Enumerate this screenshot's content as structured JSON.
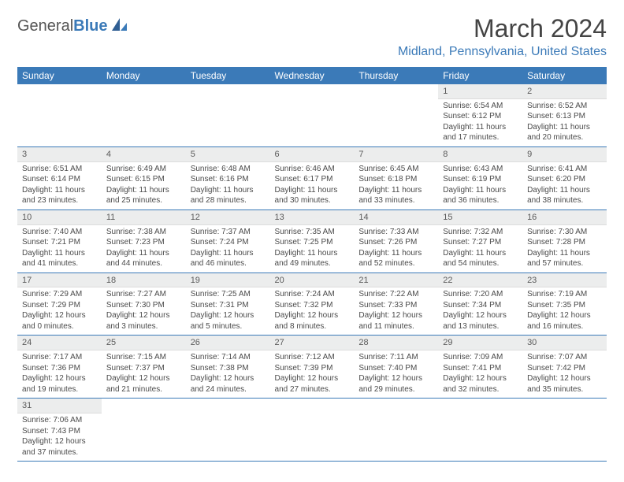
{
  "logo": {
    "word1": "General",
    "word2": "Blue"
  },
  "colors": {
    "brand_blue": "#3b7ab8",
    "header_text": "#444444",
    "body_text": "#4a4a4a",
    "daybar_bg": "#eceded",
    "bg": "#ffffff"
  },
  "typography": {
    "title_fontsize": 32,
    "location_fontsize": 16,
    "dayhead_fontsize": 12,
    "cell_fontsize": 10
  },
  "layout": {
    "columns": 7,
    "rows": 6
  },
  "title": "March 2024",
  "location": "Midland, Pennsylvania, United States",
  "day_headers": [
    "Sunday",
    "Monday",
    "Tuesday",
    "Wednesday",
    "Thursday",
    "Friday",
    "Saturday"
  ],
  "weeks": [
    [
      null,
      null,
      null,
      null,
      null,
      {
        "n": "1",
        "sunrise": "Sunrise: 6:54 AM",
        "sunset": "Sunset: 6:12 PM",
        "daylight": "Daylight: 11 hours and 17 minutes."
      },
      {
        "n": "2",
        "sunrise": "Sunrise: 6:52 AM",
        "sunset": "Sunset: 6:13 PM",
        "daylight": "Daylight: 11 hours and 20 minutes."
      }
    ],
    [
      {
        "n": "3",
        "sunrise": "Sunrise: 6:51 AM",
        "sunset": "Sunset: 6:14 PM",
        "daylight": "Daylight: 11 hours and 23 minutes."
      },
      {
        "n": "4",
        "sunrise": "Sunrise: 6:49 AM",
        "sunset": "Sunset: 6:15 PM",
        "daylight": "Daylight: 11 hours and 25 minutes."
      },
      {
        "n": "5",
        "sunrise": "Sunrise: 6:48 AM",
        "sunset": "Sunset: 6:16 PM",
        "daylight": "Daylight: 11 hours and 28 minutes."
      },
      {
        "n": "6",
        "sunrise": "Sunrise: 6:46 AM",
        "sunset": "Sunset: 6:17 PM",
        "daylight": "Daylight: 11 hours and 30 minutes."
      },
      {
        "n": "7",
        "sunrise": "Sunrise: 6:45 AM",
        "sunset": "Sunset: 6:18 PM",
        "daylight": "Daylight: 11 hours and 33 minutes."
      },
      {
        "n": "8",
        "sunrise": "Sunrise: 6:43 AM",
        "sunset": "Sunset: 6:19 PM",
        "daylight": "Daylight: 11 hours and 36 minutes."
      },
      {
        "n": "9",
        "sunrise": "Sunrise: 6:41 AM",
        "sunset": "Sunset: 6:20 PM",
        "daylight": "Daylight: 11 hours and 38 minutes."
      }
    ],
    [
      {
        "n": "10",
        "sunrise": "Sunrise: 7:40 AM",
        "sunset": "Sunset: 7:21 PM",
        "daylight": "Daylight: 11 hours and 41 minutes."
      },
      {
        "n": "11",
        "sunrise": "Sunrise: 7:38 AM",
        "sunset": "Sunset: 7:23 PM",
        "daylight": "Daylight: 11 hours and 44 minutes."
      },
      {
        "n": "12",
        "sunrise": "Sunrise: 7:37 AM",
        "sunset": "Sunset: 7:24 PM",
        "daylight": "Daylight: 11 hours and 46 minutes."
      },
      {
        "n": "13",
        "sunrise": "Sunrise: 7:35 AM",
        "sunset": "Sunset: 7:25 PM",
        "daylight": "Daylight: 11 hours and 49 minutes."
      },
      {
        "n": "14",
        "sunrise": "Sunrise: 7:33 AM",
        "sunset": "Sunset: 7:26 PM",
        "daylight": "Daylight: 11 hours and 52 minutes."
      },
      {
        "n": "15",
        "sunrise": "Sunrise: 7:32 AM",
        "sunset": "Sunset: 7:27 PM",
        "daylight": "Daylight: 11 hours and 54 minutes."
      },
      {
        "n": "16",
        "sunrise": "Sunrise: 7:30 AM",
        "sunset": "Sunset: 7:28 PM",
        "daylight": "Daylight: 11 hours and 57 minutes."
      }
    ],
    [
      {
        "n": "17",
        "sunrise": "Sunrise: 7:29 AM",
        "sunset": "Sunset: 7:29 PM",
        "daylight": "Daylight: 12 hours and 0 minutes."
      },
      {
        "n": "18",
        "sunrise": "Sunrise: 7:27 AM",
        "sunset": "Sunset: 7:30 PM",
        "daylight": "Daylight: 12 hours and 3 minutes."
      },
      {
        "n": "19",
        "sunrise": "Sunrise: 7:25 AM",
        "sunset": "Sunset: 7:31 PM",
        "daylight": "Daylight: 12 hours and 5 minutes."
      },
      {
        "n": "20",
        "sunrise": "Sunrise: 7:24 AM",
        "sunset": "Sunset: 7:32 PM",
        "daylight": "Daylight: 12 hours and 8 minutes."
      },
      {
        "n": "21",
        "sunrise": "Sunrise: 7:22 AM",
        "sunset": "Sunset: 7:33 PM",
        "daylight": "Daylight: 12 hours and 11 minutes."
      },
      {
        "n": "22",
        "sunrise": "Sunrise: 7:20 AM",
        "sunset": "Sunset: 7:34 PM",
        "daylight": "Daylight: 12 hours and 13 minutes."
      },
      {
        "n": "23",
        "sunrise": "Sunrise: 7:19 AM",
        "sunset": "Sunset: 7:35 PM",
        "daylight": "Daylight: 12 hours and 16 minutes."
      }
    ],
    [
      {
        "n": "24",
        "sunrise": "Sunrise: 7:17 AM",
        "sunset": "Sunset: 7:36 PM",
        "daylight": "Daylight: 12 hours and 19 minutes."
      },
      {
        "n": "25",
        "sunrise": "Sunrise: 7:15 AM",
        "sunset": "Sunset: 7:37 PM",
        "daylight": "Daylight: 12 hours and 21 minutes."
      },
      {
        "n": "26",
        "sunrise": "Sunrise: 7:14 AM",
        "sunset": "Sunset: 7:38 PM",
        "daylight": "Daylight: 12 hours and 24 minutes."
      },
      {
        "n": "27",
        "sunrise": "Sunrise: 7:12 AM",
        "sunset": "Sunset: 7:39 PM",
        "daylight": "Daylight: 12 hours and 27 minutes."
      },
      {
        "n": "28",
        "sunrise": "Sunrise: 7:11 AM",
        "sunset": "Sunset: 7:40 PM",
        "daylight": "Daylight: 12 hours and 29 minutes."
      },
      {
        "n": "29",
        "sunrise": "Sunrise: 7:09 AM",
        "sunset": "Sunset: 7:41 PM",
        "daylight": "Daylight: 12 hours and 32 minutes."
      },
      {
        "n": "30",
        "sunrise": "Sunrise: 7:07 AM",
        "sunset": "Sunset: 7:42 PM",
        "daylight": "Daylight: 12 hours and 35 minutes."
      }
    ],
    [
      {
        "n": "31",
        "sunrise": "Sunrise: 7:06 AM",
        "sunset": "Sunset: 7:43 PM",
        "daylight": "Daylight: 12 hours and 37 minutes."
      },
      null,
      null,
      null,
      null,
      null,
      null
    ]
  ]
}
